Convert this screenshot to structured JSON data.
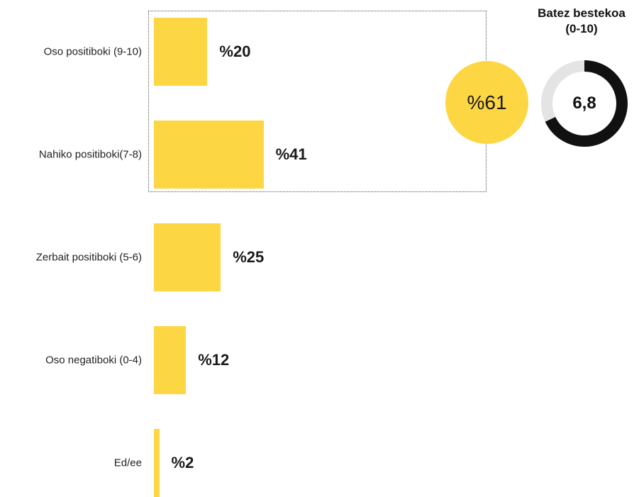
{
  "colors": {
    "bar": "#fdd644",
    "donut_fill": "#111111",
    "donut_track": "#e4e4e4",
    "summary_circle": "#fdd644"
  },
  "chart_data": {
    "type": "bar",
    "orientation": "horizontal",
    "categories": [
      "Oso positiboki (9-10)",
      "Nahiko positiboki(7-8)",
      "Zerbait positiboki (5-6)",
      "Oso negatiboki (0-4)",
      "Ed/ee"
    ],
    "values": [
      20,
      41,
      25,
      12,
      2
    ],
    "value_labels": [
      "%20",
      "%41",
      "%25",
      "%12",
      "%2"
    ],
    "highlight": {
      "categories": [
        "Oso positiboki (9-10)",
        "Nahiko positiboki(7-8)"
      ],
      "total_label": "%61",
      "total_value": 61
    },
    "average": {
      "title_line1": "Batez bestekoa",
      "title_line2": "(0-10)",
      "value_label": "6,8",
      "value": 6.8,
      "scale_max": 10
    }
  }
}
